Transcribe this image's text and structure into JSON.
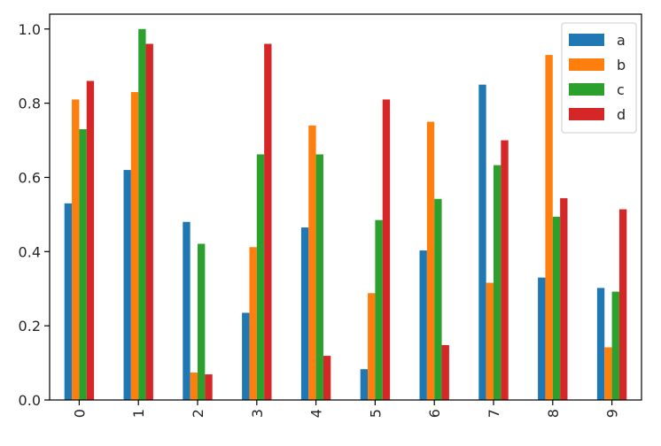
{
  "chart_data": {
    "type": "bar",
    "title": "",
    "xlabel": "",
    "ylabel": "",
    "categories": [
      "0",
      "1",
      "2",
      "3",
      "4",
      "5",
      "6",
      "7",
      "8",
      "9"
    ],
    "ylim": [
      0,
      1.04
    ],
    "yticks": [
      0.0,
      0.2,
      0.4,
      0.6,
      0.8,
      1.0
    ],
    "ytick_labels": [
      "0.0",
      "0.2",
      "0.4",
      "0.6",
      "0.8",
      "1.0"
    ],
    "xtick_rotation": "vertical",
    "grid": false,
    "legend_position": "top-right",
    "series": [
      {
        "name": "a",
        "color": "#1f77b4",
        "values": [
          0.53,
          0.62,
          0.48,
          0.235,
          0.465,
          0.083,
          0.403,
          0.85,
          0.33,
          0.302
        ]
      },
      {
        "name": "b",
        "color": "#ff7f0e",
        "values": [
          0.81,
          0.83,
          0.074,
          0.412,
          0.74,
          0.288,
          0.75,
          0.316,
          0.93,
          0.142
        ]
      },
      {
        "name": "c",
        "color": "#2ca02c",
        "values": [
          0.73,
          1.0,
          0.421,
          0.662,
          0.662,
          0.485,
          0.542,
          0.633,
          0.494,
          0.292
        ]
      },
      {
        "name": "d",
        "color": "#d62728",
        "values": [
          0.86,
          0.96,
          0.069,
          0.96,
          0.119,
          0.81,
          0.148,
          0.7,
          0.544,
          0.514
        ]
      }
    ]
  }
}
